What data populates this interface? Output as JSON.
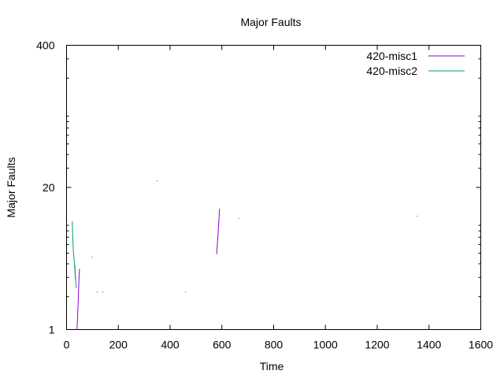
{
  "chart_data": {
    "type": "line",
    "title": "Major Faults",
    "xlabel": "Time",
    "ylabel": "Major Faults",
    "xlim": [
      0,
      1600
    ],
    "ylim": [
      1,
      400
    ],
    "yscale": "log",
    "xticks": [
      0,
      200,
      400,
      600,
      800,
      1000,
      1200,
      1400,
      1600
    ],
    "yticks": [
      1,
      20,
      400
    ],
    "legend_position": "top-right",
    "grid": false,
    "series": [
      {
        "name": "420-misc1",
        "color": "#9400d3",
        "segments": [
          [
            [
              32,
              3.9
            ],
            [
              34,
              2.9
            ]
          ],
          [
            [
              40,
              1.0
            ],
            [
              42,
              1.2
            ],
            [
              44,
              1.6
            ],
            [
              46,
              2.1
            ],
            [
              48,
              2.9
            ],
            [
              50,
              3.6
            ]
          ],
          [
            [
              580,
              4.9
            ],
            [
              584,
              6.8
            ],
            [
              588,
              9.6
            ],
            [
              591,
              12.8
            ]
          ]
        ],
        "points": [
          [
            98,
            4.6
          ],
          [
            118,
            2.2
          ],
          [
            140,
            2.2
          ],
          [
            350,
            23
          ],
          [
            460,
            2.2
          ],
          [
            665,
            10.4
          ],
          [
            1355,
            10.9
          ]
        ]
      },
      {
        "name": "420-misc2",
        "color": "#009e73",
        "segments": [
          [
            [
              22,
              9.8
            ],
            [
              24,
              7.0
            ],
            [
              26,
              5.4
            ],
            [
              28,
              4.7
            ],
            [
              30,
              4.1
            ],
            [
              32,
              3.6
            ],
            [
              34,
              3.1
            ],
            [
              36,
              2.7
            ],
            [
              38,
              2.4
            ]
          ]
        ],
        "points": []
      }
    ]
  }
}
